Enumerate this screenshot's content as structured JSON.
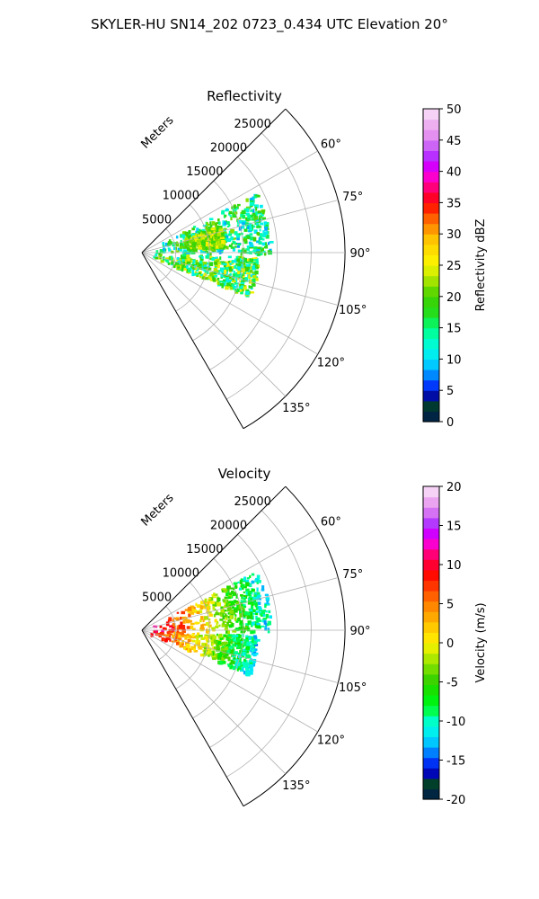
{
  "figure_title": "SKYLER-HU  SN14_202  0723_0.434 UTC Elevation 20°",
  "chart_data": [
    {
      "type": "polar-sector-heatmap",
      "title": "Reflectivity",
      "range_axis_label": "Meters",
      "range_ticks": [
        5000,
        10000,
        15000,
        20000,
        25000
      ],
      "range_max": 30000,
      "azimuth_range_deg": [
        45,
        150
      ],
      "azimuth_ticks": [
        "60°",
        "75°",
        "90°",
        "105°",
        "120°",
        "135°"
      ],
      "grid": true,
      "colorbar": {
        "label": "Reflectivity dBZ",
        "min": 0,
        "max": 50,
        "ticks": [
          0,
          5,
          10,
          15,
          20,
          25,
          30,
          35,
          40,
          45,
          50
        ]
      },
      "echo_regions": [
        {
          "az_deg": [
            62,
            90
          ],
          "range_m": [
            1000,
            19000
          ],
          "value_range": [
            8,
            22
          ]
        },
        {
          "az_deg": [
            92,
            112
          ],
          "range_m": [
            1000,
            17000
          ],
          "value_range": [
            10,
            26
          ]
        },
        {
          "az_deg": [
            70,
            85
          ],
          "range_m": [
            6000,
            12000
          ],
          "value_range": [
            18,
            26
          ]
        }
      ]
    },
    {
      "type": "polar-sector-heatmap",
      "title": "Velocity",
      "range_axis_label": "Meters",
      "range_ticks": [
        5000,
        10000,
        15000,
        20000,
        25000
      ],
      "range_max": 30000,
      "azimuth_range_deg": [
        45,
        150
      ],
      "azimuth_ticks": [
        "60°",
        "75°",
        "90°",
        "105°",
        "120°",
        "135°"
      ],
      "grid": true,
      "colorbar": {
        "label": "Velocity (m/s)",
        "min": -20,
        "max": 20,
        "ticks": [
          -20,
          -15,
          -10,
          -5,
          0,
          5,
          10,
          15,
          20
        ]
      },
      "echo_regions": [
        {
          "az_deg": [
            62,
            90
          ],
          "range_m": [
            1000,
            19000
          ],
          "value_range": [
            -12,
            12
          ]
        },
        {
          "az_deg": [
            92,
            112
          ],
          "range_m": [
            1000,
            17000
          ],
          "value_range": [
            -12,
            10
          ]
        }
      ]
    }
  ]
}
